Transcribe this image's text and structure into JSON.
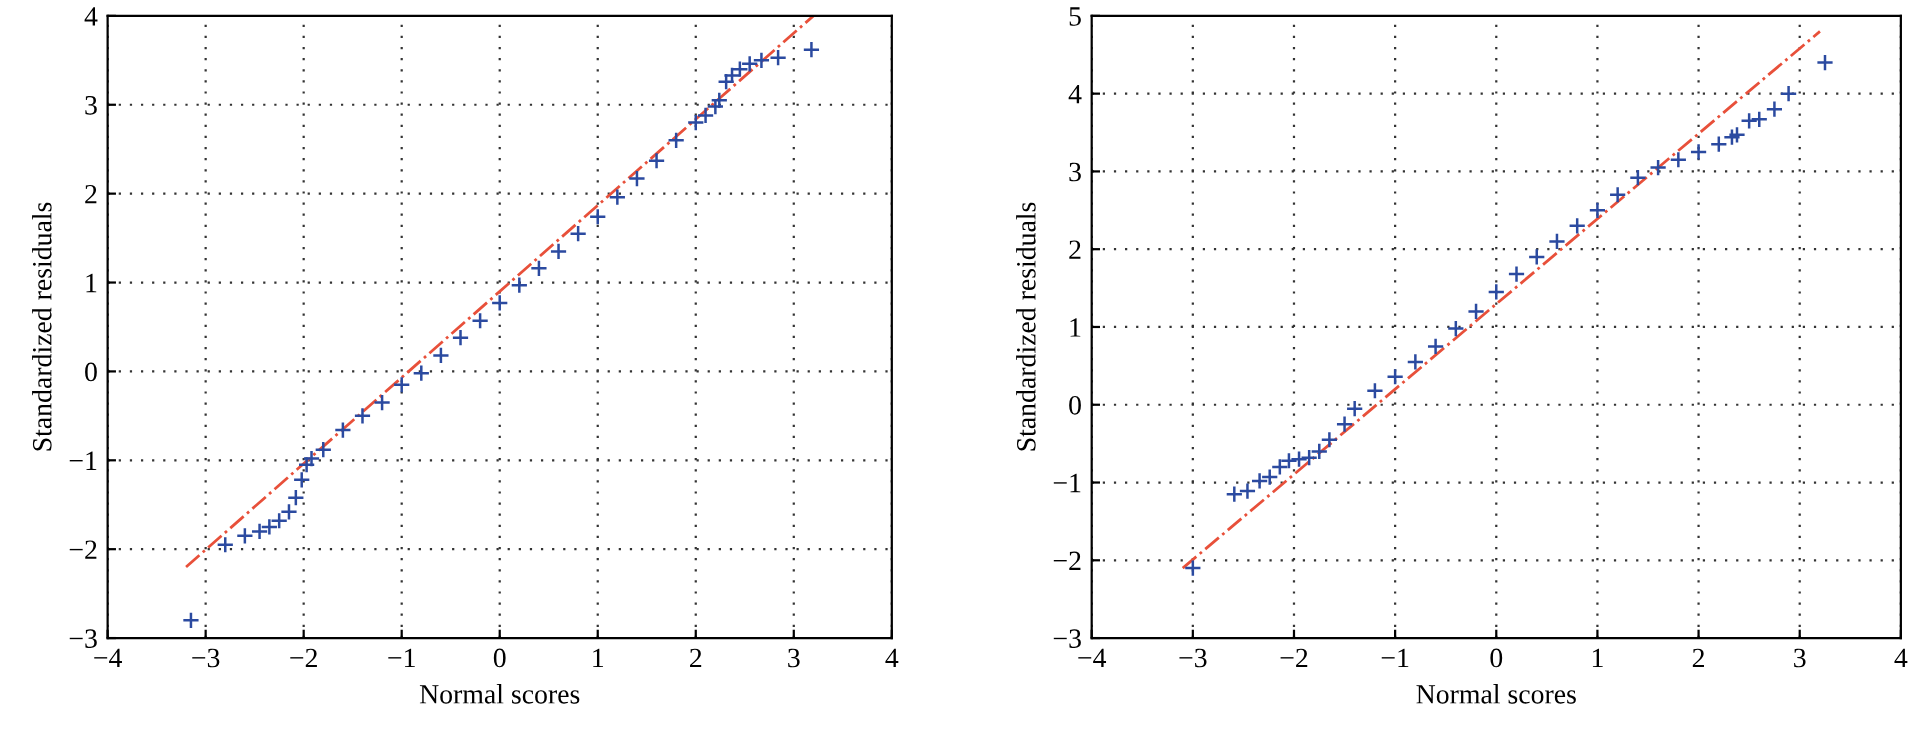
{
  "chart_data": [
    {
      "type": "scatter",
      "xlabel": "Normal scores",
      "ylabel": "Standardized residuals",
      "xlim": [
        -4,
        4
      ],
      "ylim": [
        -3,
        4
      ],
      "xticks": [
        -4,
        -3,
        -2,
        -1,
        0,
        1,
        2,
        3,
        4
      ],
      "yticks": [
        -3,
        -2,
        -1,
        0,
        1,
        2,
        3,
        4
      ],
      "grid": true,
      "legend": false,
      "series": [
        {
          "color": "#2b4aa0",
          "marker": "cross",
          "x": [
            -3.15,
            -2.8,
            -2.6,
            -2.45,
            -2.35,
            -2.25,
            -2.15,
            -2.08,
            -2.02,
            -1.97,
            -1.92,
            -1.8,
            -1.6,
            -1.4,
            -1.2,
            -1.0,
            -0.8,
            -0.6,
            -0.4,
            -0.2,
            0,
            0.2,
            0.4,
            0.6,
            0.8,
            1.0,
            1.2,
            1.4,
            1.6,
            1.8,
            2.0,
            2.1,
            2.2,
            2.24,
            2.31,
            2.37,
            2.45,
            2.55,
            2.67,
            2.84,
            3.18
          ],
          "values": [
            -2.8,
            -1.95,
            -1.85,
            -1.8,
            -1.75,
            -1.68,
            -1.58,
            -1.42,
            -1.22,
            -1.05,
            -0.98,
            -0.88,
            -0.66,
            -0.5,
            -0.35,
            -0.15,
            -0.02,
            0.18,
            0.38,
            0.57,
            0.77,
            0.97,
            1.16,
            1.35,
            1.55,
            1.74,
            1.96,
            2.17,
            2.37,
            2.6,
            2.8,
            2.88,
            2.98,
            3.05,
            3.26,
            3.33,
            3.4,
            3.46,
            3.5,
            3.53,
            3.62
          ]
        },
        {
          "type": "line",
          "color": "#e8503a",
          "line_style": "dashdot",
          "x": [
            -3.2,
            3.2
          ],
          "values": [
            -2.2,
            4.0
          ]
        }
      ]
    },
    {
      "type": "scatter",
      "xlabel": "Normal scores",
      "ylabel": "Standardized residuals",
      "xlim": [
        -4,
        4
      ],
      "ylim": [
        -3,
        5
      ],
      "xticks": [
        -4,
        -3,
        -2,
        -1,
        0,
        1,
        2,
        3,
        4
      ],
      "yticks": [
        -3,
        -2,
        -1,
        0,
        1,
        2,
        3,
        4,
        5
      ],
      "grid": true,
      "legend": false,
      "series": [
        {
          "color": "#2b4aa0",
          "marker": "cross",
          "x": [
            -3.0,
            -2.59,
            -2.46,
            -2.34,
            -2.24,
            -2.14,
            -2.05,
            -1.95,
            -1.85,
            -1.75,
            -1.65,
            -1.5,
            -1.4,
            -1.2,
            -1.0,
            -0.8,
            -0.6,
            -0.4,
            -0.2,
            0,
            0.2,
            0.4,
            0.6,
            0.8,
            1.0,
            1.2,
            1.4,
            1.6,
            1.8,
            2.0,
            2.2,
            2.33,
            2.38,
            2.5,
            2.6,
            2.75,
            2.89,
            3.25
          ],
          "values": [
            -2.1,
            -1.15,
            -1.11,
            -0.98,
            -0.93,
            -0.8,
            -0.72,
            -0.7,
            -0.68,
            -0.6,
            -0.45,
            -0.25,
            -0.05,
            0.18,
            0.36,
            0.55,
            0.75,
            0.98,
            1.2,
            1.45,
            1.68,
            1.9,
            2.1,
            2.3,
            2.5,
            2.7,
            2.92,
            3.05,
            3.15,
            3.25,
            3.35,
            3.44,
            3.47,
            3.65,
            3.67,
            3.8,
            4.0,
            4.4
          ]
        },
        {
          "type": "line",
          "color": "#e8503a",
          "line_style": "dashdot",
          "x": [
            -3.1,
            3.2
          ],
          "values": [
            -2.1,
            4.8
          ]
        }
      ]
    }
  ]
}
